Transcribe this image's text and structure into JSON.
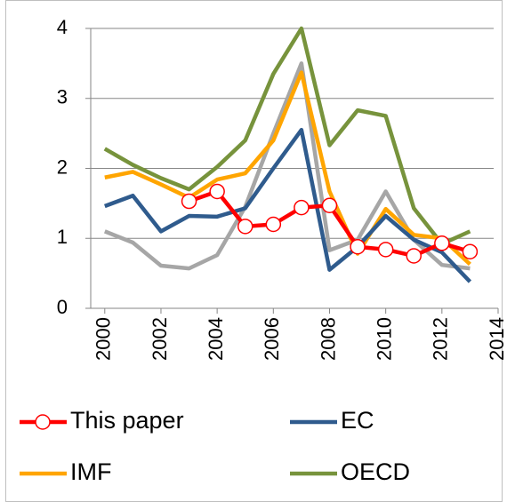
{
  "chart_data": {
    "type": "line",
    "x": [
      2000,
      2001,
      2002,
      2003,
      2004,
      2005,
      2006,
      2007,
      2008,
      2009,
      2010,
      2011,
      2012,
      2013
    ],
    "series": [
      {
        "name": "This paper",
        "color": "#ff0000",
        "marker": "circle",
        "values": [
          null,
          null,
          null,
          1.53,
          1.67,
          1.17,
          1.2,
          1.44,
          1.47,
          0.88,
          0.84,
          0.75,
          0.93,
          0.81
        ]
      },
      {
        "name": "EC",
        "color": "#2f5b8d",
        "values": [
          1.46,
          1.61,
          1.1,
          1.32,
          1.31,
          1.43,
          2.0,
          2.55,
          0.55,
          0.88,
          1.32,
          0.98,
          0.8,
          0.38
        ]
      },
      {
        "name": "IMF",
        "color": "#ffa500",
        "values": [
          1.87,
          1.95,
          1.77,
          1.58,
          1.84,
          1.93,
          2.4,
          3.37,
          1.67,
          0.78,
          1.42,
          1.05,
          1.0,
          0.63
        ]
      },
      {
        "name": "OECD",
        "color": "#77933c",
        "values": [
          2.28,
          2.05,
          1.86,
          1.7,
          2.02,
          2.4,
          3.35,
          4.0,
          2.33,
          2.83,
          2.75,
          1.43,
          0.92,
          1.1
        ]
      },
      {
        "color": "#a6a6a6",
        "values": [
          1.1,
          0.94,
          0.61,
          0.57,
          0.76,
          1.45,
          2.5,
          3.5,
          0.83,
          0.98,
          1.67,
          0.98,
          0.62,
          0.57
        ]
      }
    ],
    "xlim": [
      1999.5,
      2014
    ],
    "xticks": [
      2000,
      2002,
      2004,
      2006,
      2008,
      2010,
      2012,
      2014
    ],
    "ylim": [
      0,
      4
    ],
    "yticks": [
      0,
      1,
      2,
      3,
      4
    ],
    "grid": true,
    "legend": "bottom"
  }
}
